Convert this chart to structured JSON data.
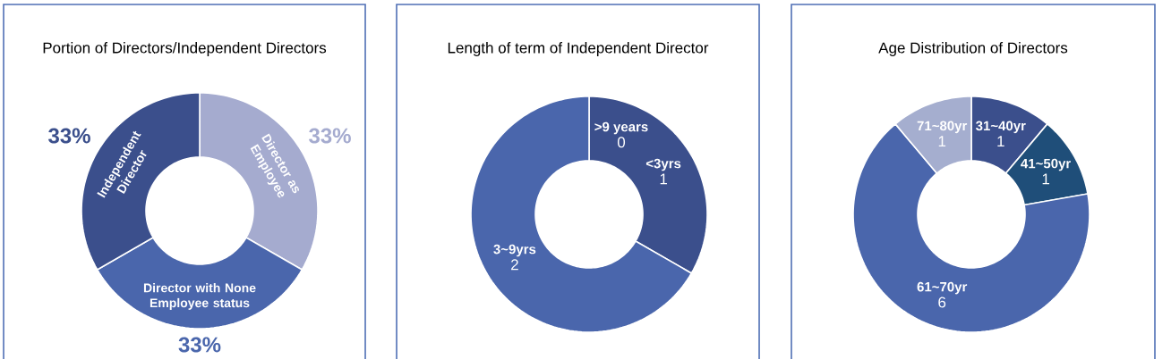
{
  "chart_data": [
    {
      "type": "donut",
      "title": "Portion of Directors/Independent Directors",
      "categories": [
        "Director as Employee",
        "Director with None Employee status",
        "Independent Director"
      ],
      "values": [
        33,
        33,
        33
      ],
      "colors": [
        "#a5abcf",
        "#4a66ac",
        "#3b4f8c"
      ],
      "value_labels": [
        "33%",
        "33%",
        "33%"
      ]
    },
    {
      "type": "donut",
      "title": "Length of term of Independent  Director",
      "categories": [
        ">9 years",
        "<3yrs",
        "3~9yrs"
      ],
      "values": [
        0,
        1,
        2
      ],
      "colors": [
        "#3b4f8c",
        "#3b4f8c",
        "#4a66ac"
      ],
      "value_labels": [
        "0",
        "1",
        "2"
      ]
    },
    {
      "type": "donut",
      "title": "Age Distribution of Directors",
      "categories": [
        "31~40yr",
        "41~50yr",
        "61~70yr",
        "71~80yr"
      ],
      "values": [
        1,
        1,
        6,
        1
      ],
      "colors": [
        "#3b4f8c",
        "#1f4e79",
        "#4a66ac",
        "#a5aecf"
      ],
      "data_labels": true
    }
  ]
}
